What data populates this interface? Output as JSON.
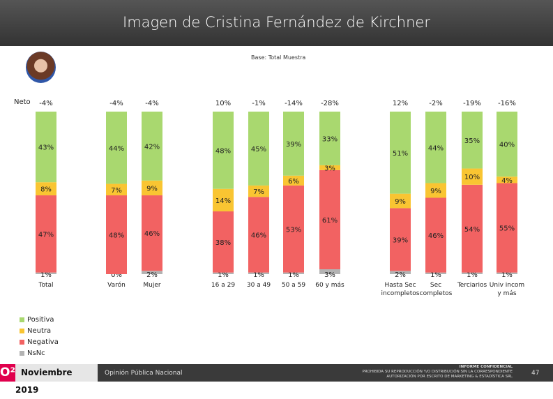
{
  "header": {
    "title": "Imagen de Cristina Fernández de Kirchner"
  },
  "base_note": "Base: Total Muestra",
  "chart_data": {
    "type": "bar",
    "stacked": true,
    "row_label": "Neto",
    "categories": [
      "Total",
      "Varón",
      "Mujer",
      "16 a 29",
      "30 a 49",
      "50 a 59",
      "60 y más",
      "Hasta Sec incompletos",
      "Sec completos",
      "Terciarios",
      "Univ incom y más"
    ],
    "neto": [
      "-4%",
      "-4%",
      "-4%",
      "10%",
      "-1%",
      "-14%",
      "-28%",
      "12%",
      "-2%",
      "-19%",
      "-16%"
    ],
    "series": [
      {
        "name": "NsNc",
        "color": "#b3b3b3",
        "values": [
          1,
          0,
          2,
          1,
          1,
          1,
          3,
          2,
          1,
          1,
          1
        ]
      },
      {
        "name": "Negativa",
        "color": "#f26262",
        "values": [
          47,
          48,
          46,
          38,
          46,
          53,
          61,
          39,
          46,
          54,
          55
        ]
      },
      {
        "name": "Neutra",
        "color": "#f9c532",
        "values": [
          8,
          7,
          9,
          14,
          7,
          6,
          3,
          9,
          9,
          10,
          4
        ]
      },
      {
        "name": "Positiva",
        "color": "#a9d86f",
        "values": [
          43,
          44,
          42,
          48,
          45,
          39,
          33,
          51,
          44,
          35,
          40
        ]
      }
    ],
    "legend": "bottom-left"
  },
  "legend": [
    "Positiva",
    "Neutra",
    "Negativa",
    "NsNc"
  ],
  "footer": {
    "logo": "O²",
    "date": "Noviembre 2019",
    "section": "Opinión Pública Nacional",
    "confidential": [
      "INFORME CONFIDENCIAL",
      "PROHIBIDA SU REPRODUCCIÓN Y/O DISTRIBUCIÓN SIN LA CORRESPONDIENTE",
      "AUTORIZACIÓN POR ESCRITO DE MARKETING & ESTADÍSTICA SRL"
    ],
    "page": "47"
  }
}
